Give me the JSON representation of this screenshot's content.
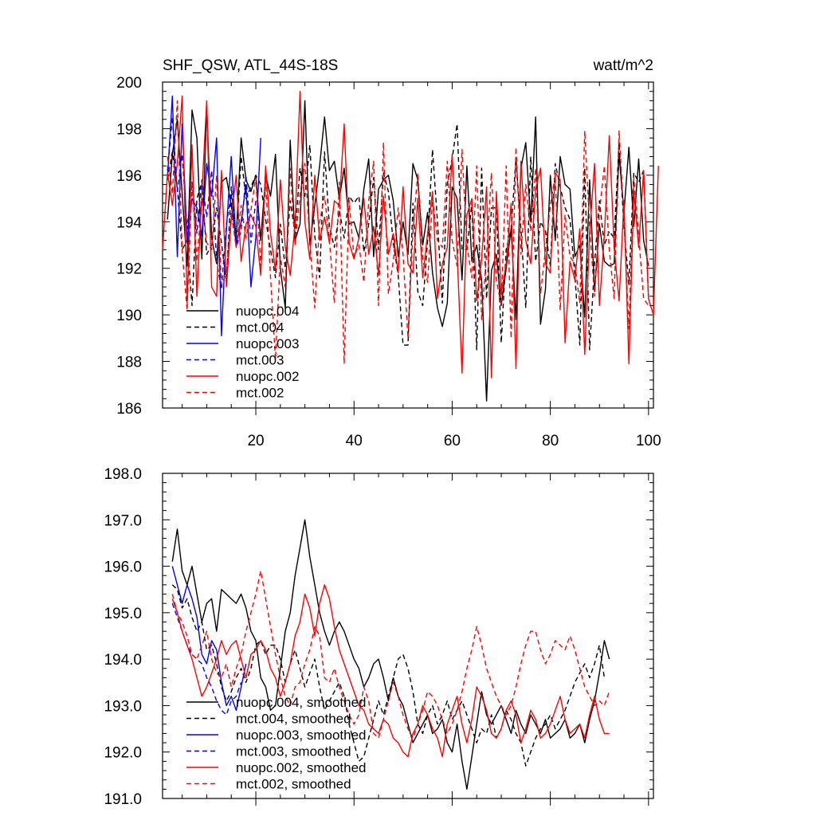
{
  "chart_data": [
    {
      "type": "line",
      "title": "SHF_QSW, ATL_44S-18S",
      "units": "watt/m^2",
      "ylim": [
        186,
        200
      ],
      "xlim": [
        1,
        101
      ],
      "yticks": [
        "186",
        "188",
        "190",
        "192",
        "194",
        "196",
        "198",
        "200"
      ],
      "xticks": [
        "20",
        "40",
        "60",
        "80",
        "100"
      ],
      "legend": [
        "nuopc.004",
        "mct.004",
        "nuopc.003",
        "mct.003",
        "nuopc.002",
        "mct.002"
      ],
      "legend_position": "bottom-left",
      "series": [
        {
          "name": "nuopc.004",
          "color": "#000000",
          "dash": "solid",
          "x_start": 2,
          "values": [
            194.1,
            196.9,
            198.4,
            195.2,
            192.1,
            198.8,
            197.6,
            192.4,
            199.0,
            193.3,
            192.2,
            195.7,
            195.9,
            194.7,
            193.3,
            197.6,
            195.8,
            195.3,
            196.0,
            193.2,
            196.0,
            195.1,
            196.9,
            192.0,
            190.3,
            197.5,
            193.2,
            193.9,
            199.2,
            193.0,
            194.7,
            196.4,
            198.5,
            196.2,
            196.6,
            195.0,
            196.3,
            193.9,
            194.0,
            193.3,
            195.4,
            196.7,
            192.5,
            195.4,
            195.8,
            196.0,
            194.9,
            192.5,
            194.0,
            192.6,
            196.5,
            195.8,
            193.0,
            194.4,
            191.8,
            190.3,
            189.5,
            190.5,
            195.5,
            195.0,
            191.5,
            196.4,
            192.3,
            193.0,
            191.5,
            186.3,
            191.9,
            192.6,
            190.4,
            192.0,
            193.7,
            189.8,
            196.3,
            197.4,
            194.0,
            198.5,
            189.6,
            191.1,
            196.0,
            193.2,
            196.8,
            195.6,
            195.4,
            192.5,
            193.0,
            189.9,
            195.8,
            191.0,
            193.9,
            192.3,
            192.1,
            192.2,
            196.9,
            194.4,
            197.2,
            193.8,
            196.7,
            193.2,
            192.1
          ]
        },
        {
          "name": "mct.004",
          "color": "#000000",
          "dash": "6,4",
          "x_start": 2,
          "values": [
            195.8,
            197.0,
            195.5,
            192.8,
            193.2,
            190.4,
            195.0,
            195.7,
            192.6,
            193.0,
            194.6,
            193.1,
            191.4,
            195.5,
            193.2,
            196.8,
            195.0,
            195.5,
            196.0,
            195.6,
            194.1,
            192.8,
            191.6,
            193.9,
            192.0,
            194.9,
            193.5,
            196.3,
            195.1,
            197.3,
            193.4,
            191.6,
            197.0,
            193.8,
            192.9,
            194.5,
            193.3,
            195.1,
            194.8,
            195.1,
            192.7,
            193.9,
            195.9,
            192.8,
            196.1,
            195.3,
            193.1,
            191.7,
            188.7,
            188.7,
            194.8,
            191.0,
            190.4,
            193.2,
            197.1,
            194.0,
            190.5,
            195.6,
            196.7,
            198.2,
            192.8,
            192.8,
            194.8,
            188.5,
            196.3,
            190.7,
            194.6,
            194.6,
            188.8,
            192.8,
            193.7,
            196.7,
            193.7,
            190.3,
            196.8,
            192.3,
            194.0,
            193.6,
            192.1,
            196.5,
            195.5,
            194.6,
            194.1,
            191.7,
            188.7,
            196.3,
            188.5,
            192.2,
            194.9,
            193.0,
            193.6,
            193.3,
            197.4,
            193.8,
            191.3,
            196.1,
            195.7,
            196.2,
            190.7
          ]
        },
        {
          "name": "nuopc.003",
          "color": "#0000ff",
          "dash": "solid",
          "x_start": 2,
          "values": [
            195.9,
            199.4,
            192.5,
            198.2,
            193.2,
            195.0,
            194.6,
            193.4,
            196.5,
            195.1,
            197.6,
            189.1,
            193.7,
            196.8,
            193.0,
            194.0,
            195.6,
            191.2,
            193.3,
            197.6
          ]
        },
        {
          "name": "mct.003",
          "color": "#0000ff",
          "dash": "6,4",
          "x_start": 2,
          "values": [
            196.2,
            198.5,
            195.3,
            196.9,
            193.7,
            195.7,
            193.5,
            195.8,
            194.2,
            196.2,
            192.3,
            191.1,
            193.9,
            195.2,
            192.9,
            193.6,
            196.0,
            193.1,
            194.9
          ]
        },
        {
          "name": "nuopc.002",
          "color": "#ff0000",
          "dash": "solid",
          "x_start": 1,
          "values": [
            192.8,
            196.1,
            194.7,
            196.5,
            199.4,
            190.5,
            197.3,
            190.8,
            195.2,
            199.2,
            191.2,
            190.8,
            196.2,
            191.2,
            194.1,
            196.0,
            192.3,
            193.9,
            194.3,
            193.8,
            191.7,
            196.4,
            193.5,
            191.9,
            195.8,
            192.9,
            191.7,
            193.9,
            199.6,
            194.0,
            192.4,
            196.0,
            193.2,
            194.2,
            193.1,
            194.9,
            194.7,
            198.2,
            193.1,
            192.4,
            193.3,
            195.0,
            192.6,
            193.8,
            191.7,
            195.1,
            192.6,
            193.5,
            191.8,
            195.5,
            192.2,
            191.8,
            195.0,
            191.6,
            193.5,
            195.3,
            190.7,
            192.2,
            192.9,
            196.9,
            192.7,
            187.5,
            194.3,
            195.0,
            190.6,
            192.4,
            195.5,
            187.3,
            195.3,
            190.9,
            192.2,
            194.8,
            187.7,
            196.6,
            193.2,
            192.2,
            195.4,
            196.3,
            192.2,
            191.8,
            196.1,
            195.8,
            188.8,
            192.3,
            191.5,
            193.7,
            188.3,
            193.5,
            196.5,
            190.4,
            193.4,
            197.7,
            192.9,
            190.6,
            194.9,
            187.9,
            195.3,
            192.9,
            196.2,
            190.7,
            190.0,
            196.4
          ]
        },
        {
          "name": "mct.002",
          "color": "#ff0000",
          "dash": "6,4",
          "x_start": 2,
          "values": [
            196.8,
            195.2,
            199.2,
            192.7,
            190.2,
            195.7,
            192.3,
            195.0,
            193.1,
            192.8,
            196.0,
            191.3,
            191.8,
            194.4,
            192.9,
            194.7,
            193.3,
            194.5,
            195.9,
            192.1,
            195.8,
            191.6,
            188.1,
            192.5,
            191.2,
            196.3,
            193.0,
            195.2,
            196.5,
            193.2,
            190.3,
            194.0,
            195.1,
            193.2,
            190.5,
            195.7,
            187.9,
            194.9,
            192.5,
            193.0,
            191.4,
            194.9,
            196.6,
            190.4,
            197.4,
            190.9,
            192.3,
            194.6,
            192.6,
            189.0,
            193.6,
            196.1,
            192.4,
            191.4,
            195.0,
            193.2,
            192.9,
            196.6,
            193.2,
            192.1,
            197.1,
            193.0,
            191.6,
            196.4,
            189.8,
            192.6,
            196.1,
            191.5,
            190.4,
            196.4,
            189.0,
            197.2,
            192.6,
            195.6,
            193.6,
            196.3,
            190.9,
            192.8,
            194.7,
            196.0,
            190.2,
            194.3,
            192.5,
            192.2,
            190.5,
            197.9,
            193.8,
            190.8,
            194.4,
            196.4,
            192.8,
            190.7,
            197.9,
            194.1,
            189.4,
            195.9,
            193.4,
            190.7,
            190.4
          ]
        }
      ]
    },
    {
      "type": "line",
      "title": "",
      "ylim": [
        191.0,
        198.0
      ],
      "xlim": [
        1,
        101
      ],
      "yticks": [
        "191.0",
        "192.0",
        "193.0",
        "194.0",
        "195.0",
        "196.0",
        "197.0",
        "198.0"
      ],
      "xticks": [],
      "legend": [
        "nuopc.004, smoothed",
        "mct.004, smoothed",
        "nuopc.003, smoothed",
        "mct.003, smoothed",
        "nuopc.002, smoothed",
        "mct.002, smoothed"
      ],
      "legend_position": "bottom-left",
      "series": [
        {
          "name": "nuopc.004, smoothed",
          "color": "#000000",
          "dash": "solid",
          "x_start": 3,
          "values": [
            196.1,
            196.8,
            195.9,
            195.6,
            196.0,
            195.4,
            194.8,
            195.2,
            195.3,
            194.6,
            195.5,
            195.4,
            195.3,
            195.2,
            195.4,
            195.1,
            194.6,
            194.4,
            193.6,
            193.4,
            192.9,
            193.0,
            193.8,
            194.6,
            195.0,
            195.8,
            196.4,
            197.0,
            196.2,
            195.6,
            195.0,
            194.6,
            194.3,
            194.6,
            194.8,
            194.6,
            194.3,
            194.0,
            193.8,
            193.4,
            193.6,
            193.9,
            194.0,
            193.6,
            193.1,
            193.6,
            193.2,
            193.0,
            192.6,
            192.2,
            192.4,
            192.6,
            192.8,
            192.4,
            192.5,
            192.7,
            192.2,
            192.0,
            192.6,
            191.8,
            191.2,
            191.9,
            192.6,
            193.3,
            192.8,
            192.6,
            192.8,
            193.0,
            192.7,
            192.4,
            192.9,
            192.6,
            192.4,
            192.8,
            192.6,
            192.4,
            192.7,
            192.3,
            192.4,
            192.5,
            192.7,
            192.3,
            192.4,
            192.6,
            192.2,
            192.7,
            193.1,
            193.7,
            194.4,
            194.0
          ]
        },
        {
          "name": "mct.004, smoothed",
          "color": "#000000",
          "dash": "6,4",
          "x_start": 3,
          "values": [
            195.6,
            195.5,
            195.1,
            195.3,
            194.9,
            194.6,
            194.8,
            194.2,
            194.3,
            193.9,
            193.4,
            193.1,
            193.3,
            193.6,
            193.8,
            193.5,
            193.8,
            194.3,
            194.4,
            194.1,
            194.3,
            194.3,
            194.0,
            193.5,
            193.9,
            194.2,
            193.8,
            193.4,
            193.7,
            194.0,
            193.4,
            192.9,
            193.1,
            193.3,
            193.5,
            193.2,
            192.6,
            192.2,
            191.8,
            191.9,
            192.3,
            192.7,
            193.1,
            192.8,
            193.2,
            193.6,
            194.0,
            194.1,
            193.8,
            193.3,
            192.6,
            192.4,
            192.8,
            193.0,
            192.6,
            192.8,
            193.1,
            192.7,
            192.9,
            193.1,
            192.8,
            192.5,
            192.2,
            192.5,
            192.4,
            192.8,
            192.3,
            192.5,
            192.9,
            192.7,
            192.4,
            192.2,
            191.7,
            192.0,
            192.3,
            192.5,
            192.6,
            192.8,
            192.5,
            192.7,
            192.9,
            193.2,
            193.5,
            193.7,
            193.9,
            193.6,
            193.9,
            194.3,
            193.6
          ]
        },
        {
          "name": "nuopc.003, smoothed",
          "color": "#0000ff",
          "dash": "solid",
          "x_start": 3,
          "values": [
            196.0,
            195.6,
            195.2,
            195.6,
            195.3,
            194.9,
            194.1,
            193.9,
            194.4,
            194.2,
            193.5,
            193.0,
            193.2,
            192.9,
            193.4,
            193.9
          ]
        },
        {
          "name": "mct.003, smoothed",
          "color": "#0000ff",
          "dash": "6,4",
          "x_start": 3,
          "values": [
            195.2,
            194.9,
            194.6,
            194.3,
            194.1,
            194.0,
            193.9,
            193.6,
            193.4,
            193.1,
            192.9,
            192.8,
            193.1,
            193.2,
            193.5
          ]
        },
        {
          "name": "nuopc.002, smoothed",
          "color": "#ff0000",
          "dash": "solid",
          "x_start": 3,
          "values": [
            195.3,
            195.0,
            194.6,
            194.3,
            194.0,
            193.6,
            193.2,
            193.4,
            193.7,
            194.0,
            194.4,
            194.1,
            194.3,
            194.4,
            194.0,
            193.6,
            194.1,
            194.2,
            194.4,
            194.2,
            193.8,
            193.6,
            193.2,
            193.5,
            193.9,
            194.5,
            194.8,
            195.4,
            195.1,
            194.5,
            195.2,
            195.6,
            195.3,
            194.7,
            194.2,
            193.9,
            193.6,
            193.3,
            193.0,
            192.9,
            192.6,
            192.5,
            192.4,
            192.7,
            192.6,
            192.3,
            192.2,
            192.0,
            191.9,
            192.4,
            192.6,
            193.0,
            192.8,
            192.5,
            192.3,
            191.9,
            192.6,
            192.9,
            193.2,
            192.6,
            192.2,
            192.7,
            193.4,
            193.2,
            192.9,
            192.4,
            192.3,
            192.5,
            192.9,
            193.1,
            192.8,
            192.2,
            192.5,
            192.9,
            192.7,
            192.3,
            192.4,
            192.6,
            192.9,
            193.2,
            192.7,
            192.4,
            192.5,
            192.6,
            192.3,
            192.8,
            193.2,
            192.7,
            192.4,
            192.4
          ]
        },
        {
          "name": "mct.002, smoothed",
          "color": "#ff0000",
          "dash": "6,4",
          "x_start": 3,
          "values": [
            195.4,
            195.0,
            194.8,
            194.5,
            194.1,
            194.0,
            194.3,
            194.6,
            194.0,
            193.7,
            193.6,
            193.9,
            193.4,
            193.8,
            194.1,
            194.6,
            195.0,
            195.4,
            195.9,
            195.3,
            194.7,
            194.1,
            193.6,
            193.2,
            193.0,
            193.4,
            193.5,
            193.9,
            194.2,
            194.7,
            194.5,
            193.6,
            193.5,
            193.8,
            193.4,
            193.1,
            192.8,
            192.6,
            192.8,
            193.4,
            193.1,
            192.4,
            192.3,
            192.7,
            193.1,
            193.5,
            193.2,
            192.8,
            192.5,
            192.3,
            192.6,
            192.9,
            193.3,
            193.2,
            193.0,
            192.7,
            192.4,
            192.6,
            192.9,
            193.3,
            193.8,
            194.2,
            194.7,
            194.3,
            193.8,
            193.5,
            193.2,
            193.0,
            192.8,
            193.0,
            193.4,
            193.9,
            194.3,
            194.6,
            194.6,
            194.2,
            193.9,
            194.1,
            194.4,
            194.3,
            194.2,
            194.5,
            194.2,
            193.8,
            193.4,
            193.2,
            193.0,
            193.1,
            193.0,
            193.3
          ]
        }
      ]
    }
  ]
}
